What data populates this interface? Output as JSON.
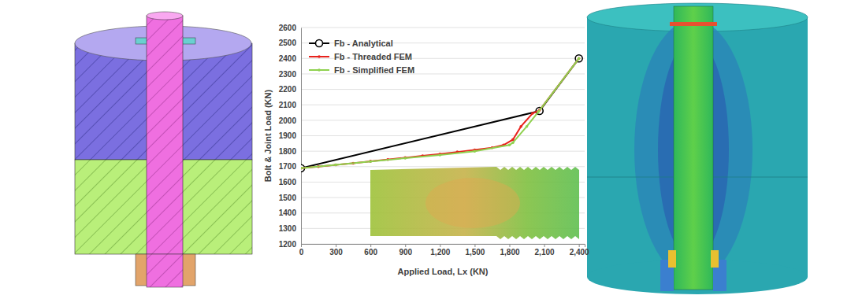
{
  "chart_data": {
    "type": "line",
    "x_label": "Applied Load, Lx (KN)",
    "y_label": "Bolt & Joint Load (KN)",
    "xlim": [
      0,
      2450
    ],
    "xticks": [
      0,
      300,
      600,
      900,
      {
        "value": 1200,
        "label": "1,200"
      },
      {
        "value": 1500,
        "label": "1,500"
      },
      {
        "value": 1800,
        "label": "1,800"
      },
      {
        "value": 2100,
        "label": "2,100"
      },
      {
        "value": 2400,
        "label": "2,400"
      }
    ],
    "ylim": [
      1200,
      2600
    ],
    "yticks": [
      1200,
      1300,
      1400,
      1500,
      1600,
      1700,
      1800,
      1900,
      2000,
      2100,
      2200,
      2300,
      2400,
      2500,
      2600
    ],
    "grid": true,
    "legend": "upper left",
    "series": [
      {
        "name": "Fb - Analytical",
        "color": "#000000",
        "marker": "open-circle",
        "x": [
          0,
          2060,
          2400
        ],
        "values": [
          1690,
          2060,
          2400
        ]
      },
      {
        "name": "Fb - Threaded FEM",
        "color": "#e8221c",
        "marker": "dot",
        "x": [
          0,
          150,
          300,
          450,
          600,
          750,
          900,
          1050,
          1200,
          1350,
          1500,
          1650,
          1750,
          1830,
          1900,
          2000,
          2060,
          2400
        ],
        "values": [
          1690,
          1700,
          1712,
          1722,
          1735,
          1746,
          1758,
          1770,
          1782,
          1795,
          1808,
          1822,
          1840,
          1875,
          1960,
          2045,
          2065,
          2400
        ]
      },
      {
        "name": "Fb - Simplified FEM",
        "color": "#8fd14f",
        "marker": "dot",
        "x": [
          0,
          300,
          600,
          900,
          1200,
          1500,
          1800,
          1830,
          1950,
          2050,
          2400
        ],
        "values": [
          1690,
          1712,
          1733,
          1755,
          1775,
          1800,
          1840,
          1855,
          1960,
          2055,
          2400
        ]
      }
    ]
  }
}
